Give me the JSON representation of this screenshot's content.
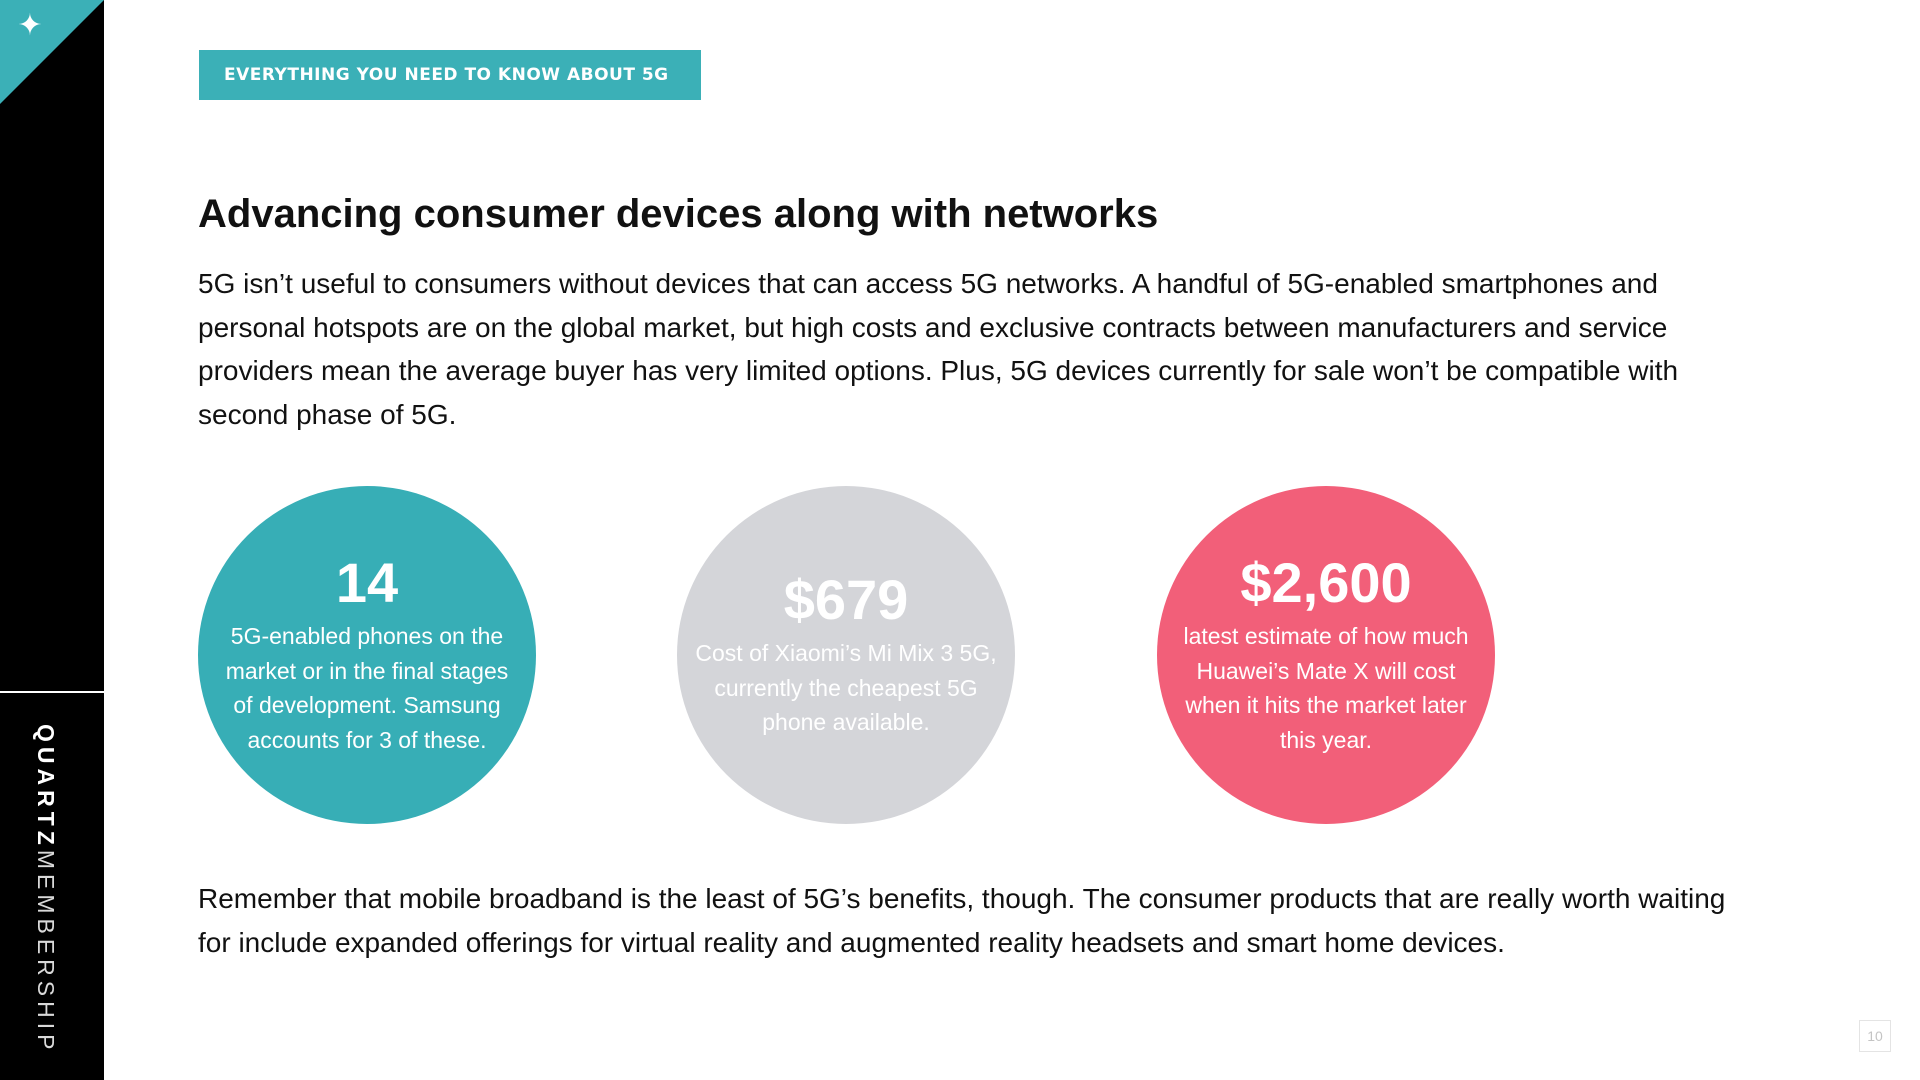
{
  "sidebar": {
    "icon": "star-icon",
    "icon_glyph": "✦",
    "brand_strong": "QUARTZ",
    "brand_light": "MEMBERSHIP"
  },
  "header": {
    "tag": "EVERYTHING YOU NEED TO KNOW ABOUT 5G"
  },
  "article": {
    "title": "Advancing consumer devices along with networks",
    "intro": "5G isn’t useful to consumers without devices that can access 5G networks. A handful of 5G-enabled smartphones and personal hotspots are on the global market, but high costs and exclusive contracts between manufacturers and service providers mean the average buyer has very limited options. Plus, 5G devices currently for sale won’t be compatible with second phase of 5G.",
    "outro": "Remember that mobile broadband is the least of 5G’s benefits, though. The consumer products that are really worth waiting for include expanded offerings for virtual reality and augmented reality headsets and smart home devices."
  },
  "stats": [
    {
      "value": "14",
      "description": "5G-enabled phones on the market or in the final stages of development. Samsung accounts for 3 of these.",
      "color": "#37aeb6"
    },
    {
      "value": "$679",
      "description": "Cost of Xiaomi’s Mi Mix 3 5G, currently the cheapest 5G phone available.",
      "color": "#d4d5d9"
    },
    {
      "value": "$2,600",
      "description": "latest estimate of how much Huawei’s Mate X will cost when it hits the market later this year.",
      "color": "#f25f79"
    }
  ],
  "footer": {
    "page_number": "10"
  },
  "colors": {
    "accent": "#3bb0b7",
    "sidebar": "#000000",
    "text": "#111111"
  }
}
